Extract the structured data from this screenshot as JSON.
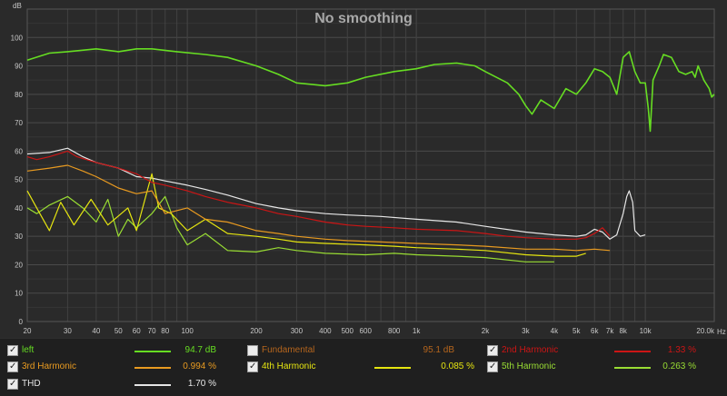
{
  "chart_data": {
    "type": "line",
    "title": "No smoothing",
    "ylabel": "dB",
    "xlabel": "Hz",
    "x_scale": "log",
    "xlim": [
      20,
      20000
    ],
    "ylim": [
      0,
      110
    ],
    "grid": true,
    "y_ticks": [
      0,
      10,
      20,
      30,
      40,
      50,
      60,
      70,
      80,
      90,
      100
    ],
    "x_ticks": [
      {
        "v": 20,
        "label": "20"
      },
      {
        "v": 30,
        "label": "30"
      },
      {
        "v": 40,
        "label": "40"
      },
      {
        "v": 50,
        "label": "50"
      },
      {
        "v": 60,
        "label": "60"
      },
      {
        "v": 70,
        "label": "70"
      },
      {
        "v": 80,
        "label": "80"
      },
      {
        "v": 100,
        "label": "100"
      },
      {
        "v": 200,
        "label": "200"
      },
      {
        "v": 300,
        "label": "300"
      },
      {
        "v": 400,
        "label": "400"
      },
      {
        "v": 500,
        "label": "500"
      },
      {
        "v": 600,
        "label": "600"
      },
      {
        "v": 800,
        "label": "800"
      },
      {
        "v": 1000,
        "label": "1k"
      },
      {
        "v": 2000,
        "label": "2k"
      },
      {
        "v": 3000,
        "label": "3k"
      },
      {
        "v": 4000,
        "label": "4k"
      },
      {
        "v": 5000,
        "label": "5k"
      },
      {
        "v": 6000,
        "label": "6k"
      },
      {
        "v": 7000,
        "label": "7k"
      },
      {
        "v": 8000,
        "label": "8k"
      },
      {
        "v": 10000,
        "label": "10k"
      },
      {
        "v": 20000,
        "label": "20.0k"
      }
    ],
    "series": [
      {
        "name": "left",
        "color": "#66dd22",
        "points": [
          [
            20,
            92
          ],
          [
            25,
            94.5
          ],
          [
            30,
            95
          ],
          [
            40,
            96
          ],
          [
            50,
            95
          ],
          [
            60,
            96
          ],
          [
            70,
            96
          ],
          [
            90,
            95
          ],
          [
            120,
            94
          ],
          [
            150,
            93
          ],
          [
            200,
            90
          ],
          [
            250,
            87
          ],
          [
            300,
            84
          ],
          [
            350,
            83.5
          ],
          [
            400,
            83
          ],
          [
            500,
            84
          ],
          [
            600,
            86
          ],
          [
            800,
            88
          ],
          [
            1000,
            89
          ],
          [
            1200,
            90.5
          ],
          [
            1500,
            91
          ],
          [
            1800,
            90
          ],
          [
            2000,
            88
          ],
          [
            2500,
            84
          ],
          [
            2800,
            80
          ],
          [
            3000,
            76
          ],
          [
            3200,
            73
          ],
          [
            3500,
            78
          ],
          [
            4000,
            75
          ],
          [
            4500,
            82
          ],
          [
            5000,
            80
          ],
          [
            5500,
            84
          ],
          [
            6000,
            89
          ],
          [
            6500,
            88
          ],
          [
            7000,
            86
          ],
          [
            7500,
            80
          ],
          [
            8000,
            93
          ],
          [
            8500,
            95
          ],
          [
            9000,
            88
          ],
          [
            9500,
            84
          ],
          [
            10000,
            84
          ],
          [
            10300,
            75
          ],
          [
            10500,
            67
          ],
          [
            10800,
            85
          ],
          [
            11500,
            90
          ],
          [
            12000,
            94
          ],
          [
            13000,
            93
          ],
          [
            14000,
            88
          ],
          [
            15000,
            87
          ],
          [
            16000,
            88
          ],
          [
            16500,
            86
          ],
          [
            17000,
            90
          ],
          [
            18000,
            85
          ],
          [
            19000,
            82
          ],
          [
            19500,
            79
          ],
          [
            20000,
            80
          ]
        ]
      },
      {
        "name": "2nd Harmonic",
        "color": "#cc1515",
        "points": [
          [
            20,
            58
          ],
          [
            22,
            57
          ],
          [
            25,
            58
          ],
          [
            30,
            60
          ],
          [
            33,
            58
          ],
          [
            40,
            56
          ],
          [
            50,
            54
          ],
          [
            60,
            52
          ],
          [
            70,
            49
          ],
          [
            80,
            48
          ],
          [
            100,
            46
          ],
          [
            120,
            44
          ],
          [
            150,
            42
          ],
          [
            200,
            40
          ],
          [
            250,
            38
          ],
          [
            300,
            37
          ],
          [
            400,
            35
          ],
          [
            500,
            34
          ],
          [
            600,
            33.5
          ],
          [
            800,
            33
          ],
          [
            1000,
            32.5
          ],
          [
            1500,
            32
          ],
          [
            2000,
            31
          ],
          [
            2500,
            30
          ],
          [
            3000,
            29.5
          ],
          [
            4000,
            29
          ],
          [
            5000,
            29
          ],
          [
            5500,
            29.5
          ],
          [
            6000,
            31
          ],
          [
            6500,
            33
          ],
          [
            7000,
            30
          ]
        ]
      },
      {
        "name": "3rd Harmonic",
        "color": "#e89a20",
        "points": [
          [
            20,
            53
          ],
          [
            25,
            54
          ],
          [
            30,
            55
          ],
          [
            35,
            53
          ],
          [
            40,
            51
          ],
          [
            50,
            47
          ],
          [
            60,
            45
          ],
          [
            70,
            46
          ],
          [
            80,
            38
          ],
          [
            100,
            40
          ],
          [
            120,
            36
          ],
          [
            150,
            35
          ],
          [
            200,
            32
          ],
          [
            250,
            31
          ],
          [
            300,
            30
          ],
          [
            400,
            29
          ],
          [
            500,
            28.5
          ],
          [
            700,
            28
          ],
          [
            1000,
            27.5
          ],
          [
            1500,
            27
          ],
          [
            2000,
            26.5
          ],
          [
            3000,
            25.5
          ],
          [
            4000,
            25.5
          ],
          [
            5000,
            25
          ],
          [
            6000,
            25.5
          ],
          [
            7000,
            25
          ]
        ]
      },
      {
        "name": "4th Harmonic",
        "color": "#e5e510",
        "points": [
          [
            20,
            46
          ],
          [
            22,
            40
          ],
          [
            25,
            32
          ],
          [
            28,
            42
          ],
          [
            32,
            34
          ],
          [
            38,
            43
          ],
          [
            45,
            34
          ],
          [
            55,
            40
          ],
          [
            60,
            32
          ],
          [
            70,
            52
          ],
          [
            75,
            40
          ],
          [
            85,
            38
          ],
          [
            100,
            32
          ],
          [
            120,
            36
          ],
          [
            150,
            31
          ],
          [
            200,
            30
          ],
          [
            250,
            29
          ],
          [
            300,
            28
          ],
          [
            400,
            27.5
          ],
          [
            600,
            27
          ],
          [
            800,
            26.5
          ],
          [
            1000,
            26
          ],
          [
            1500,
            25.5
          ],
          [
            2000,
            25
          ],
          [
            3000,
            23.5
          ],
          [
            4000,
            23
          ],
          [
            5000,
            23
          ],
          [
            5500,
            24
          ]
        ]
      },
      {
        "name": "5th Harmonic",
        "color": "#99dd33",
        "points": [
          [
            20,
            40
          ],
          [
            22,
            38
          ],
          [
            25,
            41
          ],
          [
            30,
            44
          ],
          [
            35,
            40
          ],
          [
            40,
            35
          ],
          [
            45,
            43
          ],
          [
            50,
            30
          ],
          [
            55,
            36
          ],
          [
            60,
            33
          ],
          [
            70,
            38
          ],
          [
            80,
            44
          ],
          [
            90,
            33
          ],
          [
            100,
            27
          ],
          [
            120,
            31
          ],
          [
            150,
            25
          ],
          [
            200,
            24.5
          ],
          [
            250,
            26
          ],
          [
            300,
            25
          ],
          [
            400,
            24
          ],
          [
            600,
            23.5
          ],
          [
            800,
            24
          ],
          [
            1000,
            23.5
          ],
          [
            1500,
            23
          ],
          [
            2000,
            22.5
          ],
          [
            3000,
            21
          ],
          [
            4000,
            21
          ]
        ]
      },
      {
        "name": "THD",
        "color": "#e6e6e6",
        "points": [
          [
            20,
            59
          ],
          [
            25,
            59.5
          ],
          [
            30,
            61
          ],
          [
            35,
            58
          ],
          [
            40,
            56
          ],
          [
            50,
            54
          ],
          [
            60,
            51
          ],
          [
            70,
            50.5
          ],
          [
            80,
            49.5
          ],
          [
            100,
            48
          ],
          [
            120,
            46.5
          ],
          [
            150,
            44.5
          ],
          [
            200,
            41.5
          ],
          [
            250,
            40
          ],
          [
            300,
            39
          ],
          [
            400,
            38
          ],
          [
            500,
            37.5
          ],
          [
            700,
            37
          ],
          [
            1000,
            36
          ],
          [
            1500,
            35
          ],
          [
            2000,
            33.5
          ],
          [
            3000,
            31.5
          ],
          [
            4000,
            30.5
          ],
          [
            5000,
            30
          ],
          [
            5500,
            30.5
          ],
          [
            6000,
            32.5
          ],
          [
            6500,
            31.5
          ],
          [
            7000,
            29
          ],
          [
            7500,
            30.5
          ],
          [
            8000,
            38
          ],
          [
            8300,
            44
          ],
          [
            8500,
            46
          ],
          [
            8800,
            42
          ],
          [
            9000,
            32
          ],
          [
            9500,
            30
          ],
          [
            10000,
            30.5
          ]
        ]
      }
    ]
  },
  "legend": [
    {
      "label": "left",
      "checked": true,
      "value": "94.7 dB",
      "color": "#66dd22",
      "label_color": "#66dd22",
      "value_color": "#66dd22"
    },
    {
      "label": "Fundamental",
      "checked": false,
      "value": "95.1 dB",
      "color": "#b5651d",
      "label_color": "#b5651d",
      "value_color": "#b5651d"
    },
    {
      "label": "2nd Harmonic",
      "checked": true,
      "value": "1.33 %",
      "color": "#cc1515",
      "label_color": "#cc1515",
      "value_color": "#cc1515"
    },
    {
      "label": "3rd Harmonic",
      "checked": true,
      "value": "0.994 %",
      "color": "#e89a20",
      "label_color": "#e89a20",
      "value_color": "#e89a20"
    },
    {
      "label": "4th Harmonic",
      "checked": true,
      "value": "0.085 %",
      "color": "#e5e510",
      "label_color": "#e5e510",
      "value_color": "#e5e510"
    },
    {
      "label": "5th Harmonic",
      "checked": true,
      "value": "0.263 %",
      "color": "#99dd33",
      "label_color": "#99dd33",
      "value_color": "#99dd33"
    },
    {
      "label": "THD",
      "checked": true,
      "value": "1.70 %",
      "color": "#e6e6e6",
      "label_color": "#e6e6e6",
      "value_color": "#e6e6e6"
    }
  ]
}
